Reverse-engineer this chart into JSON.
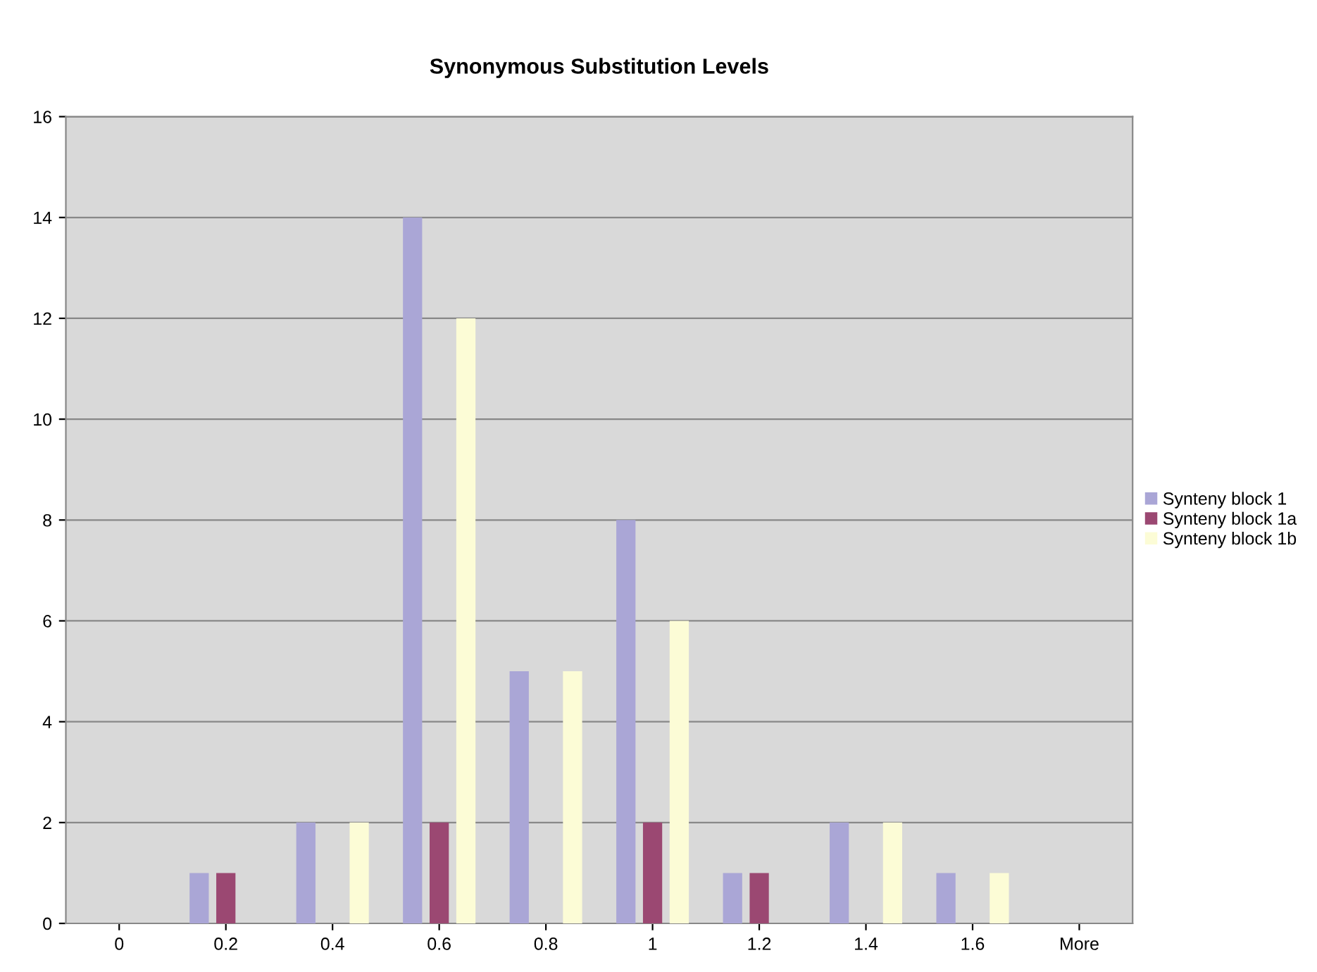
{
  "chart_data": {
    "type": "bar",
    "title": "Synonymous Substitution Levels",
    "categories": [
      "0",
      "0.2",
      "0.4",
      "0.6",
      "0.8",
      "1",
      "1.2",
      "1.4",
      "1.6",
      "More"
    ],
    "series": [
      {
        "name": "Synteny block 1",
        "color": "#aaa6d6",
        "values": [
          0,
          1,
          2,
          14,
          5,
          8,
          1,
          2,
          1,
          0
        ]
      },
      {
        "name": "Synteny block 1a",
        "color": "#9b4872",
        "values": [
          0,
          1,
          0,
          2,
          0,
          2,
          1,
          0,
          0,
          0
        ]
      },
      {
        "name": "Synteny block 1b",
        "color": "#fcfcd6",
        "values": [
          0,
          0,
          2,
          12,
          5,
          6,
          0,
          2,
          1,
          0
        ]
      }
    ],
    "ylim": [
      0,
      16
    ],
    "yticks": [
      0,
      2,
      4,
      6,
      8,
      10,
      12,
      14,
      16
    ],
    "grid": "y",
    "legend": "right"
  }
}
